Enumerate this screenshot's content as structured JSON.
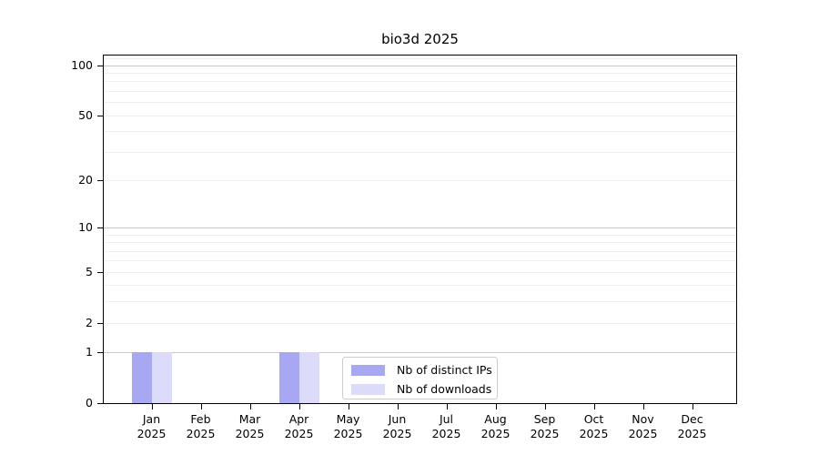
{
  "chart_data": {
    "type": "bar",
    "title": "bio3d 2025",
    "month_labels": [
      "Jan",
      "Feb",
      "Mar",
      "Apr",
      "May",
      "Jun",
      "Jul",
      "Aug",
      "Sep",
      "Oct",
      "Nov",
      "Dec"
    ],
    "year_label": "2025",
    "categories": [
      "Jan 2025",
      "Feb 2025",
      "Mar 2025",
      "Apr 2025",
      "May 2025",
      "Jun 2025",
      "Jul 2025",
      "Aug 2025",
      "Sep 2025",
      "Oct 2025",
      "Nov 2025",
      "Dec 2025"
    ],
    "series": [
      {
        "name": "Nb of distinct IPs",
        "color": "#a7a7f2",
        "values": [
          1,
          0,
          0,
          1,
          0,
          0,
          0,
          0,
          0,
          0,
          0,
          0
        ]
      },
      {
        "name": "Nb of downloads",
        "color": "#dcdcfa",
        "values": [
          1,
          0,
          0,
          1,
          0,
          0,
          0,
          0,
          0,
          0,
          0,
          0
        ]
      }
    ],
    "y_axis": {
      "scale": "log1p",
      "ylim": [
        0,
        114
      ],
      "tick_values": [
        0,
        1,
        2,
        5,
        10,
        20,
        50,
        100
      ],
      "major_grid_values": [
        1,
        10,
        100
      ],
      "minor_grid_values": [
        2,
        3,
        4,
        5,
        6,
        7,
        8,
        9,
        20,
        30,
        40,
        50,
        60,
        70,
        80,
        90,
        110
      ],
      "major_grid_color": "#c8c8c8",
      "minor_grid_color": "#efefef"
    },
    "xlabel": "",
    "ylabel": "",
    "grid": true,
    "legend_position": "bottom-center",
    "axis_color": "#000000",
    "background_color": "#ffffff"
  }
}
